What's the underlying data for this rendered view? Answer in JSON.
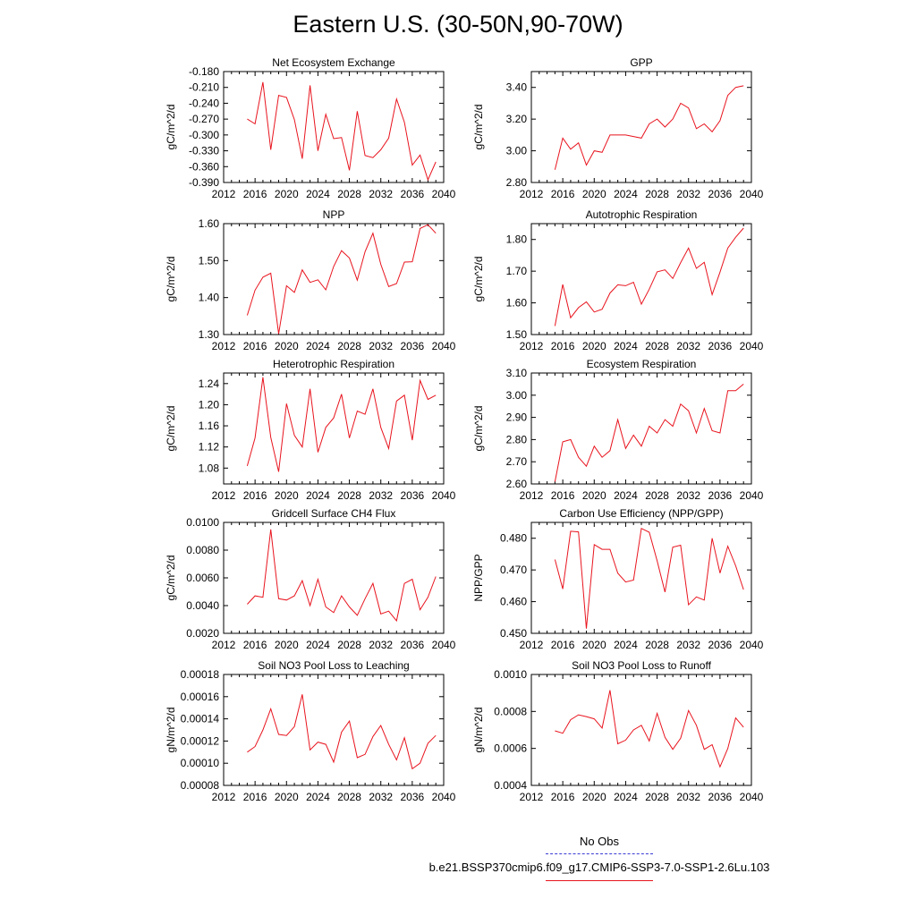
{
  "title": "Eastern U.S. (30-50N,90-70W)",
  "legend": {
    "obs_label": "No Obs",
    "obs_color": "#3b3bd6",
    "run_label": "b.e21.BSSP370cmip6.f09_g17.CMIP6-SSP3-7.0-SSP1-2.6Lu.103",
    "run_color": "#e8141e"
  },
  "chart_data": [
    {
      "type": "line",
      "title": "Net Ecosystem Exchange",
      "ylabel": "gC/m^2/d",
      "xlim": [
        2012,
        2040
      ],
      "xticks": [
        2012,
        2016,
        2020,
        2024,
        2028,
        2032,
        2036,
        2040
      ],
      "ylim": [
        -0.39,
        -0.18
      ],
      "yticks": [
        "-0.180",
        "-0.210",
        "-0.240",
        "-0.270",
        "-0.300",
        "-0.330",
        "-0.360",
        "-0.390"
      ],
      "x": [
        2015,
        2016,
        2017,
        2018,
        2019,
        2020,
        2021,
        2022,
        2023,
        2024,
        2025,
        2026,
        2027,
        2028,
        2029,
        2030,
        2031,
        2032,
        2033,
        2034,
        2035,
        2036,
        2037,
        2038,
        2039
      ],
      "y": [
        -0.27,
        -0.279,
        -0.2,
        -0.328,
        -0.225,
        -0.229,
        -0.271,
        -0.345,
        -0.206,
        -0.33,
        -0.261,
        -0.307,
        -0.305,
        -0.367,
        -0.255,
        -0.339,
        -0.343,
        -0.328,
        -0.306,
        -0.232,
        -0.276,
        -0.357,
        -0.338,
        -0.385,
        -0.351
      ]
    },
    {
      "type": "line",
      "title": "GPP",
      "ylabel": "gC/m^2/d",
      "xlim": [
        2012,
        2040
      ],
      "xticks": [
        2012,
        2016,
        2020,
        2024,
        2028,
        2032,
        2036,
        2040
      ],
      "ylim": [
        2.8,
        3.5
      ],
      "yticks": [
        "2.80",
        "3.00",
        "3.20",
        "3.40"
      ],
      "x": [
        2015,
        2016,
        2017,
        2018,
        2019,
        2020,
        2021,
        2022,
        2023,
        2024,
        2025,
        2026,
        2027,
        2028,
        2029,
        2030,
        2031,
        2032,
        2033,
        2034,
        2035,
        2036,
        2037,
        2038,
        2039
      ],
      "y": [
        2.88,
        3.08,
        3.01,
        3.05,
        2.91,
        3.0,
        2.99,
        3.1,
        3.1,
        3.1,
        3.09,
        3.08,
        3.17,
        3.2,
        3.15,
        3.2,
        3.3,
        3.27,
        3.14,
        3.17,
        3.12,
        3.19,
        3.35,
        3.4,
        3.41
      ]
    },
    {
      "type": "line",
      "title": "NPP",
      "ylabel": "gC/m^2/d",
      "xlim": [
        2012,
        2040
      ],
      "xticks": [
        2012,
        2016,
        2020,
        2024,
        2028,
        2032,
        2036,
        2040
      ],
      "ylim": [
        1.3,
        1.6
      ],
      "yticks": [
        "1.30",
        "1.40",
        "1.50",
        "1.60"
      ],
      "x": [
        2015,
        2016,
        2017,
        2018,
        2019,
        2020,
        2021,
        2022,
        2023,
        2024,
        2025,
        2026,
        2027,
        2028,
        2029,
        2030,
        2031,
        2032,
        2033,
        2034,
        2035,
        2036,
        2037,
        2038,
        2039
      ],
      "y": [
        1.352,
        1.42,
        1.455,
        1.466,
        1.302,
        1.432,
        1.414,
        1.475,
        1.441,
        1.448,
        1.421,
        1.484,
        1.527,
        1.507,
        1.447,
        1.524,
        1.574,
        1.49,
        1.43,
        1.438,
        1.496,
        1.497,
        1.587,
        1.597,
        1.574
      ]
    },
    {
      "type": "line",
      "title": "Autotrophic Respiration",
      "ylabel": "gC/m^2/d",
      "xlim": [
        2012,
        2040
      ],
      "xticks": [
        2012,
        2016,
        2020,
        2024,
        2028,
        2032,
        2036,
        2040
      ],
      "ylim": [
        1.5,
        1.85
      ],
      "yticks": [
        "1.50",
        "1.60",
        "1.70",
        "1.80"
      ],
      "x": [
        2015,
        2016,
        2017,
        2018,
        2019,
        2020,
        2021,
        2022,
        2023,
        2024,
        2025,
        2026,
        2027,
        2028,
        2029,
        2030,
        2031,
        2032,
        2033,
        2034,
        2035,
        2036,
        2037,
        2038,
        2039
      ],
      "y": [
        1.527,
        1.658,
        1.553,
        1.585,
        1.603,
        1.571,
        1.58,
        1.631,
        1.657,
        1.654,
        1.665,
        1.596,
        1.643,
        1.698,
        1.704,
        1.677,
        1.727,
        1.773,
        1.709,
        1.728,
        1.626,
        1.697,
        1.773,
        1.807,
        1.836
      ]
    },
    {
      "type": "line",
      "title": "Heterotrophic Respiration",
      "ylabel": "gC/m^2/d",
      "xlim": [
        2012,
        2040
      ],
      "xticks": [
        2012,
        2016,
        2020,
        2024,
        2028,
        2032,
        2036,
        2040
      ],
      "ylim": [
        1.05,
        1.26
      ],
      "yticks": [
        "1.08",
        "1.12",
        "1.16",
        "1.20",
        "1.24"
      ],
      "x": [
        2015,
        2016,
        2017,
        2018,
        2019,
        2020,
        2021,
        2022,
        2023,
        2024,
        2025,
        2026,
        2027,
        2028,
        2029,
        2030,
        2031,
        2032,
        2033,
        2034,
        2035,
        2036,
        2037,
        2038,
        2039
      ],
      "y": [
        1.084,
        1.137,
        1.252,
        1.138,
        1.073,
        1.202,
        1.142,
        1.12,
        1.23,
        1.11,
        1.157,
        1.175,
        1.22,
        1.137,
        1.188,
        1.182,
        1.23,
        1.157,
        1.117,
        1.207,
        1.218,
        1.133,
        1.246,
        1.21,
        1.218
      ]
    },
    {
      "type": "line",
      "title": "Ecosystem Respiration",
      "ylabel": "gC/m^2/d",
      "xlim": [
        2012,
        2040
      ],
      "xticks": [
        2012,
        2016,
        2020,
        2024,
        2028,
        2032,
        2036,
        2040
      ],
      "ylim": [
        2.6,
        3.1
      ],
      "yticks": [
        "2.60",
        "2.70",
        "2.80",
        "2.90",
        "3.00",
        "3.10"
      ],
      "x": [
        2015,
        2016,
        2017,
        2018,
        2019,
        2020,
        2021,
        2022,
        2023,
        2024,
        2025,
        2026,
        2027,
        2028,
        2029,
        2030,
        2031,
        2032,
        2033,
        2034,
        2035,
        2036,
        2037,
        2038,
        2039
      ],
      "y": [
        2.61,
        2.79,
        2.8,
        2.72,
        2.68,
        2.77,
        2.72,
        2.75,
        2.89,
        2.76,
        2.82,
        2.77,
        2.86,
        2.83,
        2.89,
        2.86,
        2.96,
        2.93,
        2.83,
        2.94,
        2.84,
        2.83,
        3.02,
        3.02,
        3.05
      ]
    },
    {
      "type": "line",
      "title": "Gridcell Surface CH4 Flux",
      "ylabel": "gC/m^2/d",
      "xlim": [
        2012,
        2040
      ],
      "xticks": [
        2012,
        2016,
        2020,
        2024,
        2028,
        2032,
        2036,
        2040
      ],
      "ylim": [
        0.002,
        0.01
      ],
      "yticks": [
        "0.0020",
        "0.0040",
        "0.0060",
        "0.0080",
        "0.0100"
      ],
      "x": [
        2015,
        2016,
        2017,
        2018,
        2019,
        2020,
        2021,
        2022,
        2023,
        2024,
        2025,
        2026,
        2027,
        2028,
        2029,
        2030,
        2031,
        2032,
        2033,
        2034,
        2035,
        2036,
        2037,
        2038,
        2039
      ],
      "y": [
        0.0041,
        0.0047,
        0.0046,
        0.0095,
        0.0045,
        0.0044,
        0.0047,
        0.0058,
        0.004,
        0.0059,
        0.0039,
        0.0035,
        0.0047,
        0.0039,
        0.0033,
        0.0045,
        0.0056,
        0.0034,
        0.0036,
        0.0029,
        0.0056,
        0.0059,
        0.0037,
        0.0046,
        0.0061
      ]
    },
    {
      "type": "line",
      "title": "Carbon Use Efficiency (NPP/GPP)",
      "ylabel": "NPP/GPP",
      "xlim": [
        2012,
        2040
      ],
      "xticks": [
        2012,
        2016,
        2020,
        2024,
        2028,
        2032,
        2036,
        2040
      ],
      "ylim": [
        0.45,
        0.485
      ],
      "yticks": [
        "0.450",
        "0.460",
        "0.470",
        "0.480"
      ],
      "x": [
        2015,
        2016,
        2017,
        2018,
        2019,
        2020,
        2021,
        2022,
        2023,
        2024,
        2025,
        2026,
        2027,
        2028,
        2029,
        2030,
        2031,
        2032,
        2033,
        2034,
        2035,
        2036,
        2037,
        2038,
        2039
      ],
      "y": [
        0.4733,
        0.464,
        0.4822,
        0.482,
        0.4515,
        0.478,
        0.4765,
        0.4765,
        0.469,
        0.4662,
        0.4668,
        0.4831,
        0.4819,
        0.4729,
        0.463,
        0.4772,
        0.4778,
        0.459,
        0.4615,
        0.4605,
        0.48,
        0.469,
        0.4775,
        0.4713,
        0.4638
      ]
    },
    {
      "type": "line",
      "title": "Soil NO3 Pool Loss to Leaching",
      "ylabel": "gN/m^2/d",
      "xlim": [
        2012,
        2040
      ],
      "xticks": [
        2012,
        2016,
        2020,
        2024,
        2028,
        2032,
        2036,
        2040
      ],
      "ylim": [
        8e-05,
        0.00018
      ],
      "yticks": [
        "0.00008",
        "0.00010",
        "0.00012",
        "0.00014",
        "0.00016",
        "0.00018"
      ],
      "x": [
        2015,
        2016,
        2017,
        2018,
        2019,
        2020,
        2021,
        2022,
        2023,
        2024,
        2025,
        2026,
        2027,
        2028,
        2029,
        2030,
        2031,
        2032,
        2033,
        2034,
        2035,
        2036,
        2037,
        2038,
        2039
      ],
      "y": [
        0.00011,
        0.000115,
        0.00013,
        0.000149,
        0.000126,
        0.000125,
        0.000133,
        0.000162,
        0.000112,
        0.000119,
        0.000117,
        0.000101,
        0.000128,
        0.000138,
        0.000105,
        0.000108,
        0.000124,
        0.000134,
        0.000117,
        0.000103,
        0.000123,
        9.5e-05,
        0.0001,
        0.000118,
        0.000125
      ]
    },
    {
      "type": "line",
      "title": "Soil NO3 Pool Loss to Runoff",
      "ylabel": "gN/m^2/d",
      "xlim": [
        2012,
        2040
      ],
      "xticks": [
        2012,
        2016,
        2020,
        2024,
        2028,
        2032,
        2036,
        2040
      ],
      "ylim": [
        0.0004,
        0.001
      ],
      "yticks": [
        "0.0004",
        "0.0006",
        "0.0008",
        "0.0010"
      ],
      "x": [
        2015,
        2016,
        2017,
        2018,
        2019,
        2020,
        2021,
        2022,
        2023,
        2024,
        2025,
        2026,
        2027,
        2028,
        2029,
        2030,
        2031,
        2032,
        2033,
        2034,
        2035,
        2036,
        2037,
        2038,
        2039
      ],
      "y": [
        0.000695,
        0.000682,
        0.000755,
        0.000782,
        0.000772,
        0.00076,
        0.00071,
        0.000915,
        0.000625,
        0.000645,
        0.0007,
        0.000725,
        0.00064,
        0.00079,
        0.00066,
        0.000595,
        0.000655,
        0.000805,
        0.000725,
        0.000595,
        0.00062,
        0.0005,
        0.0006,
        0.000765,
        0.000715
      ]
    }
  ]
}
